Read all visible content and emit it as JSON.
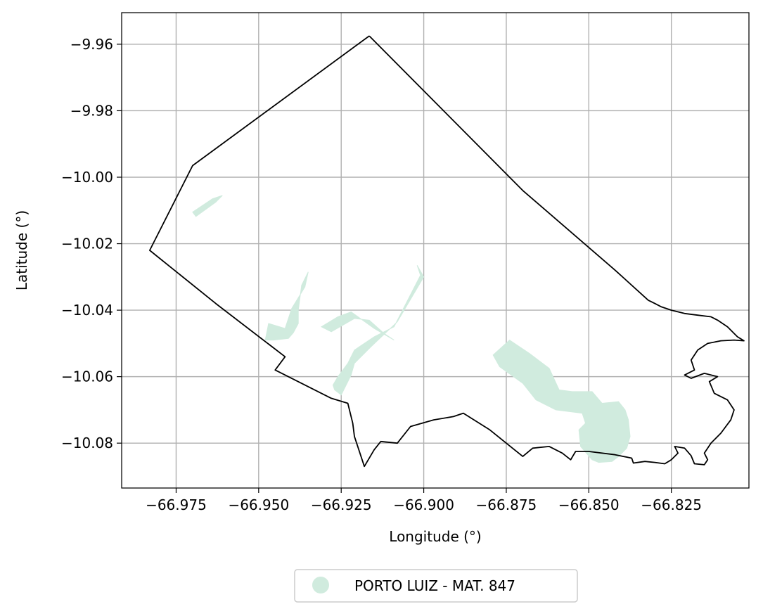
{
  "chart_data": {
    "type": "map",
    "xlabel": "Longitude (°)",
    "ylabel": "Latitude (°)",
    "xlim": [
      -66.9915,
      -66.8015
    ],
    "ylim": [
      -10.0935,
      -9.9505
    ],
    "grid": true,
    "x_ticks": [
      -66.975,
      -66.95,
      -66.925,
      -66.9,
      -66.875,
      -66.85,
      -66.825
    ],
    "x_tick_labels": [
      "−66.975",
      "−66.950",
      "−66.925",
      "−66.900",
      "−66.875",
      "−66.850",
      "−66.825"
    ],
    "y_ticks": [
      -9.96,
      -9.98,
      -10.0,
      -10.02,
      -10.04,
      -10.06,
      -10.08
    ],
    "y_tick_labels": [
      "−9.96",
      "−9.98",
      "−10.00",
      "−10.02",
      "−10.04",
      "−10.06",
      "−10.08"
    ],
    "legend": {
      "placement": "bottom-center"
    },
    "boundary": {
      "stroke_color": "#000000",
      "coordinates": [
        [
          -66.9165,
          -9.9575
        ],
        [
          -66.97,
          -9.9965
        ],
        [
          -66.983,
          -10.022
        ],
        [
          -66.963,
          -10.038
        ],
        [
          -66.942,
          -10.054
        ],
        [
          -66.945,
          -10.058
        ],
        [
          -66.928,
          -10.0665
        ],
        [
          -66.923,
          -10.068
        ],
        [
          -66.9215,
          -10.074
        ],
        [
          -66.921,
          -10.078
        ],
        [
          -66.918,
          -10.087
        ],
        [
          -66.915,
          -10.082
        ],
        [
          -66.913,
          -10.0795
        ],
        [
          -66.908,
          -10.08
        ],
        [
          -66.904,
          -10.075
        ],
        [
          -66.897,
          -10.073
        ],
        [
          -66.891,
          -10.072
        ],
        [
          -66.888,
          -10.071
        ],
        [
          -66.88,
          -10.076
        ],
        [
          -66.87,
          -10.084
        ],
        [
          -66.867,
          -10.0815
        ],
        [
          -66.862,
          -10.081
        ],
        [
          -66.858,
          -10.083
        ],
        [
          -66.8555,
          -10.085
        ],
        [
          -66.854,
          -10.0825
        ],
        [
          -66.85,
          -10.0825
        ],
        [
          -66.842,
          -10.0835
        ],
        [
          -66.837,
          -10.0845
        ],
        [
          -66.8365,
          -10.086
        ],
        [
          -66.833,
          -10.0855
        ],
        [
          -66.83,
          -10.0858
        ],
        [
          -66.827,
          -10.0862
        ],
        [
          -66.825,
          -10.085
        ],
        [
          -66.823,
          -10.083
        ],
        [
          -66.824,
          -10.081
        ],
        [
          -66.821,
          -10.0815
        ],
        [
          -66.819,
          -10.0838
        ],
        [
          -66.818,
          -10.0862
        ],
        [
          -66.815,
          -10.0865
        ],
        [
          -66.814,
          -10.085
        ],
        [
          -66.815,
          -10.083
        ],
        [
          -66.813,
          -10.08
        ],
        [
          -66.81,
          -10.077
        ],
        [
          -66.807,
          -10.073
        ],
        [
          -66.806,
          -10.07
        ],
        [
          -66.808,
          -10.067
        ],
        [
          -66.812,
          -10.065
        ],
        [
          -66.8135,
          -10.0615
        ],
        [
          -66.811,
          -10.06
        ],
        [
          -66.815,
          -10.059
        ],
        [
          -66.819,
          -10.0605
        ],
        [
          -66.821,
          -10.0595
        ],
        [
          -66.818,
          -10.058
        ],
        [
          -66.819,
          -10.055
        ],
        [
          -66.817,
          -10.052
        ],
        [
          -66.814,
          -10.05
        ],
        [
          -66.81,
          -10.0492
        ],
        [
          -66.806,
          -10.049
        ],
        [
          -66.803,
          -10.0492
        ],
        [
          -66.805,
          -10.048
        ],
        [
          -66.808,
          -10.045
        ],
        [
          -66.811,
          -10.043
        ],
        [
          -66.813,
          -10.042
        ],
        [
          -66.817,
          -10.0415
        ],
        [
          -66.821,
          -10.041
        ],
        [
          -66.825,
          -10.04
        ],
        [
          -66.828,
          -10.039
        ],
        [
          -66.83,
          -10.038
        ],
        [
          -66.832,
          -10.037
        ],
        [
          -66.842,
          -10.028
        ],
        [
          -66.87,
          -10.004
        ],
        [
          -66.9165,
          -9.9575
        ]
      ]
    },
    "series": [
      {
        "name": "PORTO LUIZ - MAT. 847",
        "color": "#d0ebde",
        "polygons": [
          [
            [
              -66.969,
              -10.0118
            ],
            [
              -66.963,
              -10.0075
            ],
            [
              -66.961,
              -10.0055
            ],
            [
              -66.964,
              -10.0065
            ],
            [
              -66.97,
              -10.0105
            ]
          ],
          [
            [
              -66.947,
              -10.044
            ],
            [
              -66.942,
              -10.0455
            ],
            [
              -66.94,
              -10.0395
            ],
            [
              -66.936,
              -10.033
            ],
            [
              -66.935,
              -10.0285
            ],
            [
              -66.937,
              -10.0325
            ],
            [
              -66.938,
              -10.04
            ],
            [
              -66.938,
              -10.044
            ],
            [
              -66.9395,
              -10.0468
            ],
            [
              -66.941,
              -10.0485
            ],
            [
              -66.9455,
              -10.049
            ],
            [
              -66.948,
              -10.049
            ]
          ],
          [
            [
              -66.925,
              -10.0655
            ],
            [
              -66.922,
              -10.0595
            ],
            [
              -66.921,
              -10.056
            ],
            [
              -66.916,
              -10.051
            ],
            [
              -66.908,
              -10.0435
            ],
            [
              -66.9,
              -10.03
            ],
            [
              -66.902,
              -10.0265
            ],
            [
              -66.901,
              -10.0295
            ],
            [
              -66.909,
              -10.045
            ],
            [
              -66.915,
              -10.048
            ],
            [
              -66.921,
              -10.052
            ],
            [
              -66.923,
              -10.056
            ],
            [
              -66.926,
              -10.06
            ],
            [
              -66.9275,
              -10.0625
            ],
            [
              -66.927,
              -10.064
            ]
          ],
          [
            [
              -66.928,
              -10.0465
            ],
            [
              -66.921,
              -10.0425
            ],
            [
              -66.9165,
              -10.043
            ],
            [
              -66.912,
              -10.047
            ],
            [
              -66.909,
              -10.049
            ],
            [
              -66.915,
              -10.0455
            ],
            [
              -66.922,
              -10.0405
            ],
            [
              -66.926,
              -10.042
            ],
            [
              -66.931,
              -10.045
            ]
          ],
          [
            [
              -66.879,
              -10.0535
            ],
            [
              -66.874,
              -10.049
            ],
            [
              -66.868,
              -10.053
            ],
            [
              -66.862,
              -10.0575
            ],
            [
              -66.859,
              -10.064
            ],
            [
              -66.855,
              -10.0645
            ],
            [
              -66.849,
              -10.0645
            ],
            [
              -66.846,
              -10.068
            ],
            [
              -66.841,
              -10.0675
            ],
            [
              -66.839,
              -10.07
            ],
            [
              -66.838,
              -10.073
            ],
            [
              -66.8375,
              -10.078
            ],
            [
              -66.8385,
              -10.0815
            ],
            [
              -66.841,
              -10.084
            ],
            [
              -66.843,
              -10.0855
            ],
            [
              -66.847,
              -10.0858
            ],
            [
              -66.849,
              -10.085
            ],
            [
              -66.8525,
              -10.081
            ],
            [
              -66.853,
              -10.076
            ],
            [
              -66.851,
              -10.074
            ],
            [
              -66.852,
              -10.071
            ],
            [
              -66.86,
              -10.07
            ],
            [
              -66.866,
              -10.067
            ],
            [
              -66.87,
              -10.062
            ],
            [
              -66.877,
              -10.057
            ]
          ]
        ]
      }
    ]
  }
}
